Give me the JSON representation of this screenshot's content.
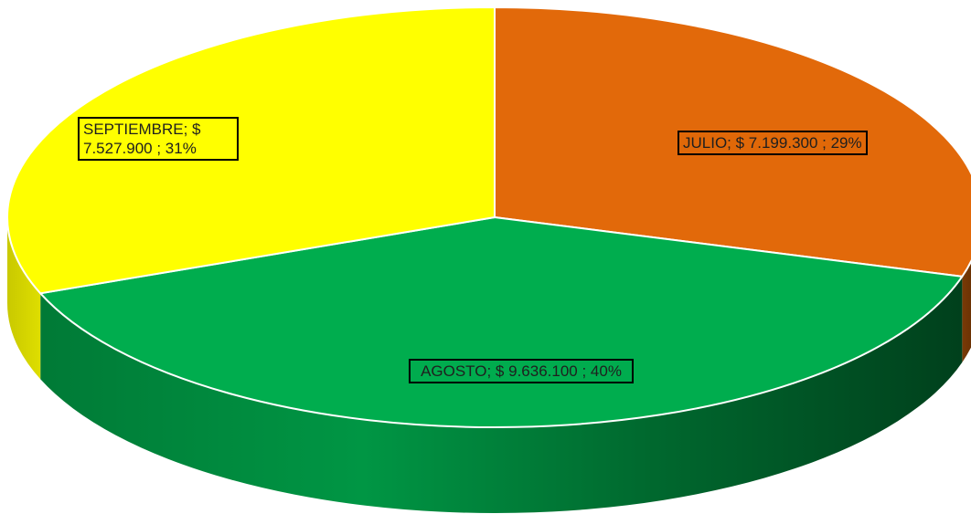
{
  "chart_data": {
    "type": "pie",
    "categories": [
      "JULIO",
      "AGOSTO",
      "SEPTIEMBRE"
    ],
    "values": [
      7199300,
      9636100,
      7527900
    ],
    "percentages": [
      29,
      40,
      31
    ],
    "colors": [
      "#e2690a",
      "#00ad4e",
      "#ffff00"
    ],
    "labels": [
      "JULIO; $ 7.199.300 ; 29%",
      "AGOSTO; $ 9.636.100 ; 40%",
      "SEPTIEMBRE; $ 7.527.900 ; 31%"
    ],
    "style": "3d"
  },
  "data_labels": {
    "julio": "JULIO; $ 7.199.300 ; 29%",
    "agosto": "AGOSTO; $ 9.636.100 ; 40%",
    "septiembre": "SEPTIEMBRE; $ 7.527.900 ; 31%"
  }
}
